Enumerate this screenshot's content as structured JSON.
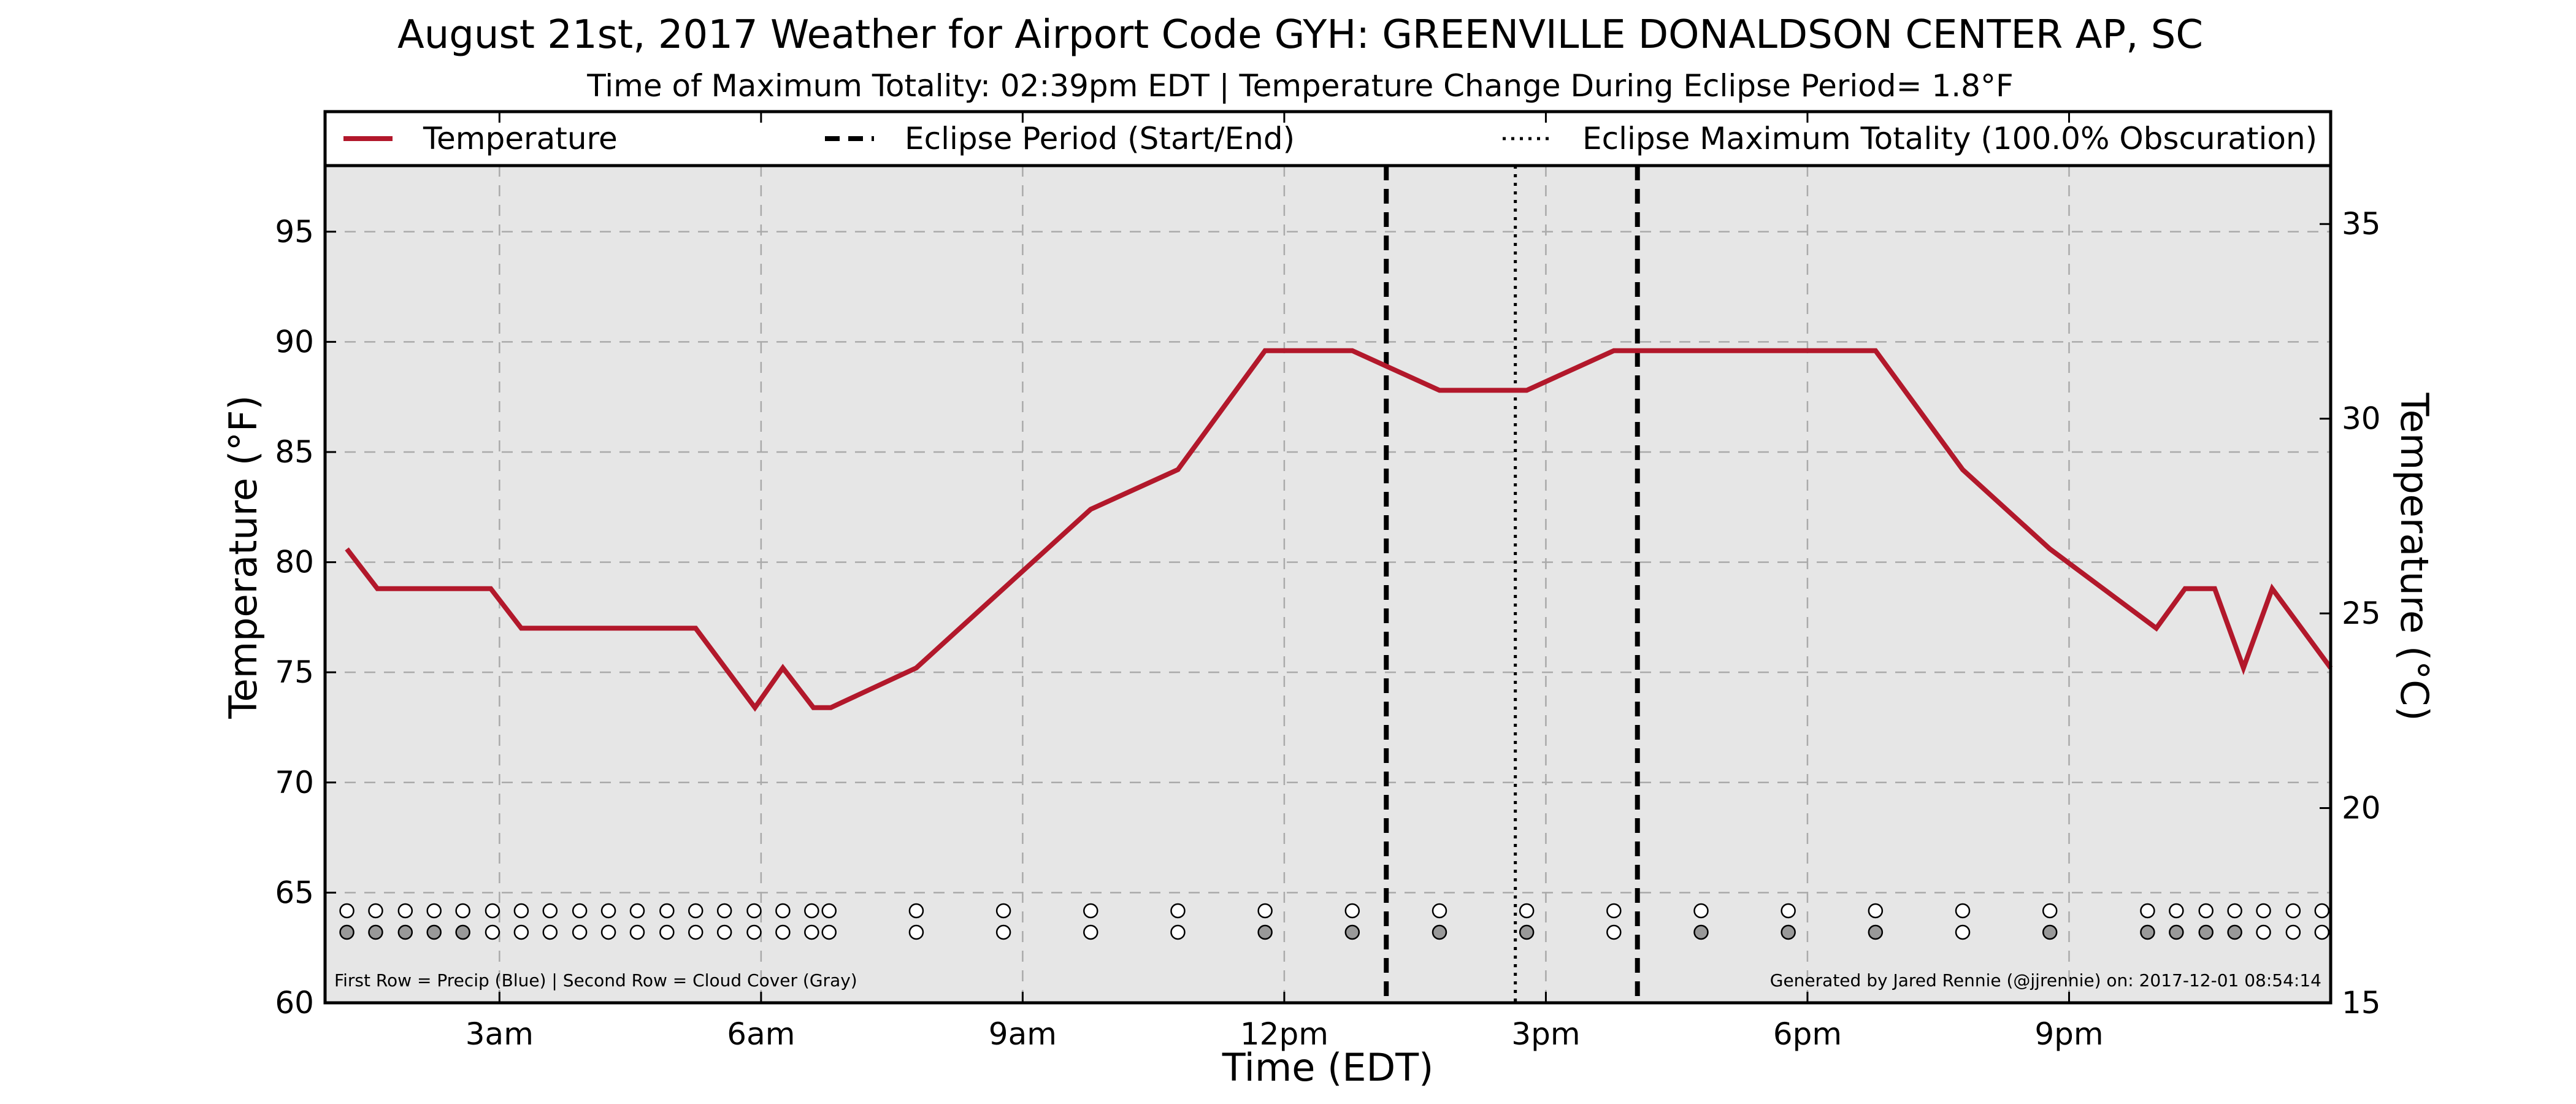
{
  "chart_data": {
    "type": "line",
    "title": "August 21st, 2017 Weather for Airport Code GYH: GREENVILLE DONALDSON CENTER AP, SC",
    "subtitle": "Time of Maximum Totality: 02:39pm EDT | Temperature Change During Eclipse Period= 1.8°F",
    "xlabel": "Time (EDT)",
    "ylabel": "Temperature (°F)",
    "ylabel_right": "Temperature (°C)",
    "xlim": [
      1.0,
      24.0
    ],
    "ylim": [
      60,
      98
    ],
    "ylim_right": [
      15,
      36.5
    ],
    "xticks": [
      {
        "x": 3,
        "label": "3am"
      },
      {
        "x": 6,
        "label": "6am"
      },
      {
        "x": 9,
        "label": "9am"
      },
      {
        "x": 12,
        "label": "12pm"
      },
      {
        "x": 15,
        "label": "3pm"
      },
      {
        "x": 18,
        "label": "6pm"
      },
      {
        "x": 21,
        "label": "9pm"
      }
    ],
    "yticks": [
      60,
      65,
      70,
      75,
      80,
      85,
      90,
      95
    ],
    "yticks_right": [
      15,
      20,
      25,
      30,
      35
    ],
    "grid": true,
    "legend": {
      "placement": "top",
      "entries": [
        {
          "label": "Temperature",
          "style": "solid",
          "color": "#b2182b"
        },
        {
          "label": "Eclipse Period (Start/End)",
          "style": "dashed",
          "color": "#000000"
        },
        {
          "label": "Eclipse Maximum Totality (100.0% Obscuration)",
          "style": "dotted",
          "color": "#000000"
        }
      ]
    },
    "series": [
      {
        "name": "Temperature",
        "color": "#b2182b",
        "x": [
          1.25,
          1.6,
          2.9,
          3.25,
          5.25,
          5.93,
          6.25,
          6.6,
          6.8,
          7.78,
          9.78,
          10.78,
          11.78,
          12.78,
          13.78,
          14.78,
          15.78,
          16.78,
          17.78,
          18.78,
          19.78,
          20.78,
          22.0,
          22.33,
          22.67,
          23.0,
          23.33,
          24.0
        ],
        "y": [
          80.6,
          78.8,
          78.8,
          77.0,
          77.0,
          73.4,
          75.2,
          73.4,
          73.4,
          75.2,
          82.4,
          84.2,
          89.6,
          89.6,
          87.8,
          87.8,
          89.6,
          89.6,
          89.6,
          89.6,
          84.2,
          80.6,
          77.0,
          78.8,
          78.8,
          75.2,
          78.8,
          75.2
        ]
      }
    ],
    "eclipse": {
      "start": 13.17,
      "max": 14.65,
      "end": 16.05
    },
    "observations": {
      "x": [
        1.25,
        1.58,
        1.92,
        2.25,
        2.58,
        2.92,
        3.25,
        3.58,
        3.92,
        4.25,
        4.58,
        4.92,
        5.25,
        5.58,
        5.92,
        6.25,
        6.58,
        6.78,
        7.78,
        8.78,
        9.78,
        10.78,
        11.78,
        12.78,
        13.78,
        14.78,
        15.78,
        16.78,
        17.78,
        18.78,
        19.78,
        20.78,
        21.9,
        22.23,
        22.57,
        22.9,
        23.23,
        23.57,
        23.9
      ],
      "precip": [
        0,
        0,
        0,
        0,
        0,
        0,
        0,
        0,
        0,
        0,
        0,
        0,
        0,
        0,
        0,
        0,
        0,
        0,
        0,
        0,
        0,
        0,
        0,
        0,
        0,
        0,
        0,
        0,
        0,
        0,
        0,
        0,
        0,
        0,
        0,
        0,
        0,
        0,
        0
      ],
      "cloud_cover": [
        1,
        1,
        1,
        1,
        1,
        0,
        0,
        0,
        0,
        0,
        0,
        0,
        0,
        0,
        0,
        0,
        0,
        0,
        0,
        0,
        0,
        0,
        1,
        1,
        1,
        1,
        0,
        1,
        1,
        1,
        0,
        1,
        1,
        1,
        1,
        1,
        0,
        0,
        0
      ]
    },
    "footnote_left": "First Row = Precip (Blue) | Second Row = Cloud Cover (Gray)",
    "footnote_right": "Generated by Jared Rennie (@jjrennie) on: 2017-12-01 08:54:14",
    "colors": {
      "plot_bg": "#e6e6e6",
      "grid": "#aaaaaa",
      "cloud": "#999999",
      "precip": "#4a90d9"
    }
  }
}
